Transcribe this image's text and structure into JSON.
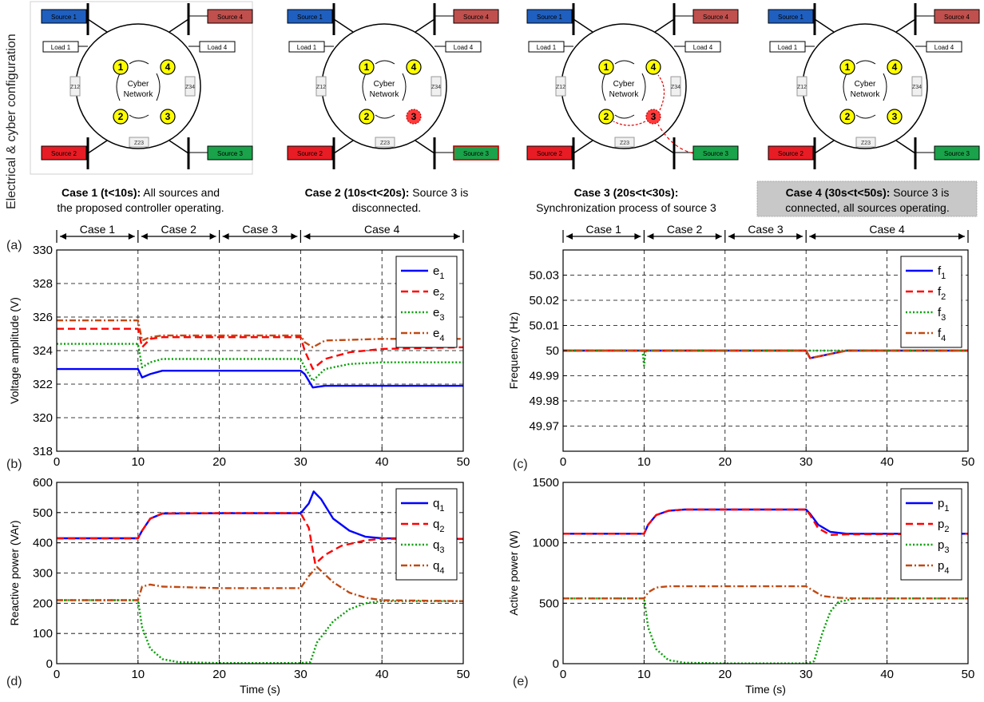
{
  "side_label": "Electrical & cyber configuration",
  "panel_a_letter": "(a)",
  "cases": [
    {
      "name": "case1",
      "caption_bold": "Case 1 (t<10s):",
      "caption_rest": " All sources and",
      "caption_line2": "the proposed controller operating.",
      "shaded": false,
      "failed_node": null,
      "sync_arrows": false,
      "source3_boxed": false
    },
    {
      "name": "case2",
      "caption_bold": "Case 2 (10s<t<20s):",
      "caption_rest": " Source 3 is",
      "caption_line2": "disconnected.",
      "shaded": false,
      "failed_node": 3,
      "sync_arrows": false,
      "source3_boxed": true
    },
    {
      "name": "case3",
      "caption_bold": "Case 3 (20s<t<30s):",
      "caption_rest": "",
      "caption_line2": "Synchronization process of source 3",
      "shaded": false,
      "failed_node": 3,
      "sync_arrows": true,
      "source3_boxed": false
    },
    {
      "name": "case4",
      "caption_bold": "Case 4 (30s<t<50s):",
      "caption_rest": " Source 3 is",
      "caption_line2": "connected, all sources operating.",
      "shaded": true,
      "failed_node": null,
      "sync_arrows": false,
      "source3_boxed": false
    }
  ],
  "diagram_labels": {
    "source1": "Source 1",
    "source2": "Source 2",
    "source3": "Source 3",
    "source4": "Source 4",
    "load1": "Load 1",
    "load4": "Load 4",
    "cyber1": "Cyber",
    "cyber2": "Network",
    "z12": "Z12",
    "z23": "Z23",
    "z34": "Z34",
    "n1": "1",
    "n2": "2",
    "n3": "3",
    "n4": "4"
  },
  "colors": {
    "source1": "#1f5fbf",
    "source2": "#e81c24",
    "source3": "#1aa34a",
    "source4": "#c0504d",
    "node_yellow": "#ffff00",
    "node_red": "#ff3b3b",
    "series1": "#0000ff",
    "series2": "#ff0000",
    "series3": "#00a000",
    "series4": "#c04a14",
    "grid": "#000000"
  },
  "case_bar_labels": [
    "Case 1",
    "Case 2",
    "Case 3",
    "Case 4"
  ],
  "chart_data": [
    {
      "name": "voltage",
      "type": "line",
      "panel_letter": "(b)",
      "ylabel": "Voltage amplitude (V)",
      "xlabel": "",
      "xlim": [
        0,
        50
      ],
      "ylim": [
        318,
        330
      ],
      "xticks": [
        0,
        10,
        20,
        30,
        40,
        50
      ],
      "yticks": [
        318,
        320,
        322,
        324,
        326,
        328,
        330
      ],
      "ytick_labels": [
        "318",
        "320",
        "322",
        "324",
        "326",
        "328",
        "330"
      ],
      "grid": true,
      "legend_position": "top-right",
      "series": [
        {
          "name": "e",
          "sub": "1",
          "style": "solid",
          "points": [
            [
              0,
              322.9
            ],
            [
              10,
              322.9
            ],
            [
              10.5,
              322.4
            ],
            [
              11.5,
              322.6
            ],
            [
              13,
              322.8
            ],
            [
              20,
              322.8
            ],
            [
              30,
              322.8
            ],
            [
              30.5,
              322.6
            ],
            [
              31.5,
              321.8
            ],
            [
              33,
              321.9
            ],
            [
              40,
              321.9
            ],
            [
              50,
              321.9
            ]
          ]
        },
        {
          "name": "e",
          "sub": "2",
          "style": "dash",
          "points": [
            [
              0,
              325.3
            ],
            [
              10,
              325.3
            ],
            [
              10.5,
              324.2
            ],
            [
              11.5,
              324.7
            ],
            [
              13,
              324.8
            ],
            [
              20,
              324.8
            ],
            [
              30,
              324.8
            ],
            [
              30.5,
              324.0
            ],
            [
              31.5,
              322.9
            ],
            [
              33,
              323.5
            ],
            [
              36,
              323.9
            ],
            [
              40,
              324.1
            ],
            [
              50,
              324.2
            ]
          ]
        },
        {
          "name": "e",
          "sub": "3",
          "style": "dot",
          "points": [
            [
              0,
              324.4
            ],
            [
              10,
              324.4
            ],
            [
              10.5,
              323.0
            ],
            [
              11.5,
              323.3
            ],
            [
              13,
              323.5
            ],
            [
              20,
              323.5
            ],
            [
              30,
              323.5
            ],
            [
              30.5,
              323.0
            ],
            [
              31.5,
              322.2
            ],
            [
              33,
              322.9
            ],
            [
              36,
              323.2
            ],
            [
              40,
              323.3
            ],
            [
              50,
              323.3
            ]
          ]
        },
        {
          "name": "e",
          "sub": "4",
          "style": "dashdot",
          "points": [
            [
              0,
              325.8
            ],
            [
              10,
              325.8
            ],
            [
              10.5,
              324.6
            ],
            [
              11.5,
              324.8
            ],
            [
              13,
              324.9
            ],
            [
              20,
              324.9
            ],
            [
              30,
              324.9
            ],
            [
              30.5,
              324.5
            ],
            [
              31.5,
              324.2
            ],
            [
              33,
              324.6
            ],
            [
              40,
              324.7
            ],
            [
              50,
              324.7
            ]
          ]
        }
      ]
    },
    {
      "name": "frequency",
      "type": "line",
      "panel_letter": "(c)",
      "ylabel": "Frequency (Hz)",
      "xlabel": "",
      "xlim": [
        0,
        50
      ],
      "ylim": [
        49.96,
        50.04
      ],
      "xticks": [
        0,
        10,
        20,
        30,
        40,
        50
      ],
      "yticks": [
        49.97,
        49.98,
        49.99,
        50,
        50.01,
        50.02,
        50.03
      ],
      "ytick_labels": [
        "49.97",
        "49.98",
        "49.99",
        "50",
        "50.01",
        "50.02",
        "50.03"
      ],
      "grid": true,
      "legend_position": "top-right",
      "series": [
        {
          "name": "f",
          "sub": "1",
          "style": "solid",
          "points": [
            [
              0,
              50.0
            ],
            [
              30,
              50.0
            ],
            [
              30.5,
              49.997
            ],
            [
              32,
              49.998
            ],
            [
              35,
              50.0
            ],
            [
              50,
              50.0
            ]
          ]
        },
        {
          "name": "f",
          "sub": "2",
          "style": "dash",
          "points": [
            [
              0,
              50.0
            ],
            [
              30,
              50.0
            ],
            [
              30.5,
              49.997
            ],
            [
              32,
              49.998
            ],
            [
              35,
              50.0
            ],
            [
              50,
              50.0
            ]
          ]
        },
        {
          "name": "f",
          "sub": "3",
          "style": "dot",
          "points": [
            [
              0,
              50.0
            ],
            [
              9.8,
              50.0
            ],
            [
              10,
              49.994
            ],
            [
              10.2,
              50.0
            ],
            [
              50,
              50.0
            ]
          ]
        },
        {
          "name": "f",
          "sub": "4",
          "style": "dashdot",
          "points": [
            [
              0,
              50.0
            ],
            [
              30,
              50.0
            ],
            [
              30.5,
              49.997
            ],
            [
              32,
              49.998
            ],
            [
              35,
              50.0
            ],
            [
              50,
              50.0
            ]
          ]
        }
      ]
    },
    {
      "name": "reactive_power",
      "type": "line",
      "panel_letter": "(d)",
      "ylabel": "Reactive power (VAr)",
      "xlabel": "Time (s)",
      "xlim": [
        0,
        50
      ],
      "ylim": [
        0,
        600
      ],
      "xticks": [
        0,
        10,
        20,
        30,
        40,
        50
      ],
      "yticks": [
        0,
        100,
        200,
        300,
        400,
        500,
        600
      ],
      "ytick_labels": [
        "0",
        "100",
        "200",
        "300",
        "400",
        "500",
        "600"
      ],
      "grid": true,
      "legend_position": "top-right",
      "series": [
        {
          "name": "q",
          "sub": "1",
          "style": "solid",
          "points": [
            [
              0,
              415
            ],
            [
              10,
              415
            ],
            [
              10.5,
              440
            ],
            [
              11.5,
              480
            ],
            [
              13,
              497
            ],
            [
              20,
              498
            ],
            [
              30,
              498
            ],
            [
              31,
              530
            ],
            [
              31.6,
              570
            ],
            [
              32.5,
              545
            ],
            [
              34,
              480
            ],
            [
              36,
              440
            ],
            [
              38,
              420
            ],
            [
              40,
              415
            ],
            [
              50,
              413
            ]
          ]
        },
        {
          "name": "q",
          "sub": "2",
          "style": "dash",
          "points": [
            [
              0,
              415
            ],
            [
              10,
              415
            ],
            [
              10.5,
              440
            ],
            [
              11.5,
              480
            ],
            [
              13,
              497
            ],
            [
              20,
              498
            ],
            [
              30,
              498
            ],
            [
              31,
              450
            ],
            [
              31.8,
              330
            ],
            [
              33,
              360
            ],
            [
              35,
              390
            ],
            [
              38,
              408
            ],
            [
              40,
              413
            ],
            [
              50,
              413
            ]
          ]
        },
        {
          "name": "q",
          "sub": "3",
          "style": "dot",
          "points": [
            [
              0,
              210
            ],
            [
              10,
              210
            ],
            [
              10.5,
              120
            ],
            [
              11.5,
              50
            ],
            [
              13,
              15
            ],
            [
              15,
              5
            ],
            [
              20,
              2
            ],
            [
              30,
              2
            ],
            [
              31.2,
              5
            ],
            [
              32,
              70
            ],
            [
              34,
              140
            ],
            [
              36,
              180
            ],
            [
              38,
              200
            ],
            [
              40,
              207
            ],
            [
              50,
              207
            ]
          ]
        },
        {
          "name": "q",
          "sub": "4",
          "style": "dashdot",
          "points": [
            [
              0,
              210
            ],
            [
              10,
              210
            ],
            [
              10.5,
              255
            ],
            [
              11.5,
              262
            ],
            [
              13,
              255
            ],
            [
              20,
              250
            ],
            [
              30,
              250
            ],
            [
              31,
              290
            ],
            [
              32,
              320
            ],
            [
              34,
              270
            ],
            [
              36,
              235
            ],
            [
              38,
              218
            ],
            [
              40,
              210
            ],
            [
              50,
              207
            ]
          ]
        }
      ]
    },
    {
      "name": "active_power",
      "type": "line",
      "panel_letter": "(e)",
      "ylabel": "Active power (W)",
      "xlabel": "Time (s)",
      "xlim": [
        0,
        50
      ],
      "ylim": [
        0,
        1500
      ],
      "xticks": [
        0,
        10,
        20,
        30,
        40,
        50
      ],
      "yticks": [
        0,
        500,
        1000,
        1500
      ],
      "ytick_labels": [
        "0",
        "500",
        "1000",
        "1500"
      ],
      "grid": true,
      "legend_position": "top-right",
      "series": [
        {
          "name": "p",
          "sub": "1",
          "style": "solid",
          "points": [
            [
              0,
              1075
            ],
            [
              10,
              1075
            ],
            [
              10.5,
              1150
            ],
            [
              11.5,
              1230
            ],
            [
              13,
              1265
            ],
            [
              15,
              1275
            ],
            [
              30,
              1275
            ],
            [
              30.5,
              1240
            ],
            [
              31.5,
              1150
            ],
            [
              33,
              1090
            ],
            [
              35,
              1075
            ],
            [
              50,
              1075
            ]
          ]
        },
        {
          "name": "p",
          "sub": "2",
          "style": "dash",
          "points": [
            [
              0,
              1075
            ],
            [
              10,
              1075
            ],
            [
              10.5,
              1150
            ],
            [
              11.5,
              1230
            ],
            [
              13,
              1265
            ],
            [
              15,
              1275
            ],
            [
              30,
              1275
            ],
            [
              30.5,
              1230
            ],
            [
              31.5,
              1120
            ],
            [
              33,
              1065
            ],
            [
              35,
              1070
            ],
            [
              50,
              1075
            ]
          ]
        },
        {
          "name": "p",
          "sub": "3",
          "style": "dot",
          "points": [
            [
              0,
              540
            ],
            [
              10,
              540
            ],
            [
              10.5,
              300
            ],
            [
              11.5,
              120
            ],
            [
              13,
              30
            ],
            [
              15,
              8
            ],
            [
              20,
              2
            ],
            [
              30,
              2
            ],
            [
              31,
              20
            ],
            [
              32,
              250
            ],
            [
              33,
              430
            ],
            [
              34,
              510
            ],
            [
              36,
              540
            ],
            [
              50,
              540
            ]
          ]
        },
        {
          "name": "p",
          "sub": "4",
          "style": "dashdot",
          "points": [
            [
              0,
              540
            ],
            [
              10,
              540
            ],
            [
              10.5,
              590
            ],
            [
              11.5,
              630
            ],
            [
              13,
              640
            ],
            [
              20,
              640
            ],
            [
              30,
              640
            ],
            [
              31,
              600
            ],
            [
              32,
              560
            ],
            [
              34,
              545
            ],
            [
              36,
              540
            ],
            [
              50,
              540
            ]
          ]
        }
      ]
    }
  ]
}
